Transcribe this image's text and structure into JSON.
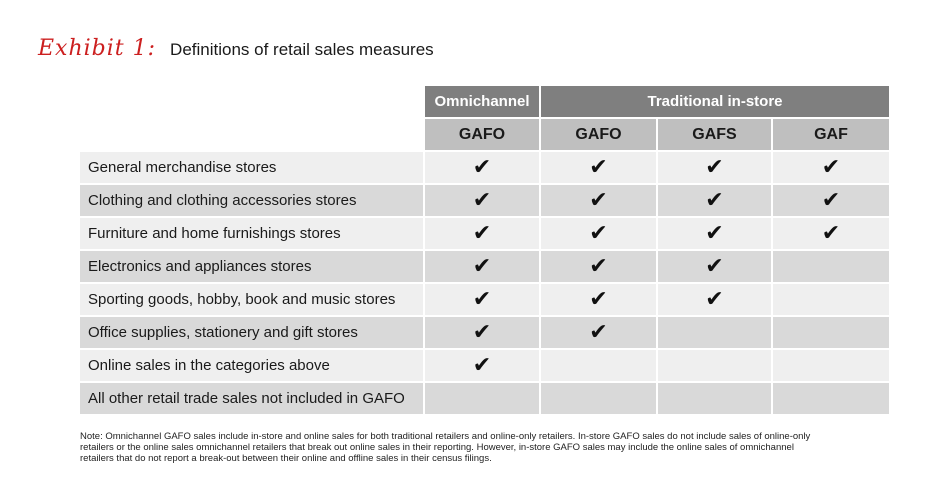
{
  "exhibit_label": "Exhibit 1:",
  "title": "Definitions of retail sales measures",
  "table": {
    "group_headers": {
      "omnichannel": "Omnichannel",
      "traditional": "Traditional in-store"
    },
    "columns": [
      "GAFO",
      "GAFO",
      "GAFS",
      "GAF"
    ],
    "check_glyph": "✔",
    "rows": [
      {
        "label": "General merchandise stores",
        "checks": [
          true,
          true,
          true,
          true
        ]
      },
      {
        "label": "Clothing and clothing accessories stores",
        "checks": [
          true,
          true,
          true,
          true
        ]
      },
      {
        "label": "Furniture and home furnishings stores",
        "checks": [
          true,
          true,
          true,
          true
        ]
      },
      {
        "label": "Electronics and appliances stores",
        "checks": [
          true,
          true,
          true,
          false
        ]
      },
      {
        "label": "Sporting goods, hobby, book and music stores",
        "checks": [
          true,
          true,
          true,
          false
        ]
      },
      {
        "label": "Office supplies, stationery and gift stores",
        "checks": [
          true,
          true,
          false,
          false
        ]
      },
      {
        "label": "Online sales in the categories above",
        "checks": [
          true,
          false,
          false,
          false
        ]
      },
      {
        "label": "All other retail trade sales not included in GAFO",
        "checks": [
          false,
          false,
          false,
          false
        ]
      }
    ]
  },
  "note": "Note: Omnichannel GAFO sales include in-store and online sales for both traditional retailers and online-only retailers. In-store GAFO sales do not include sales of online-only retailers or the online sales omnichannel retailers that break out online sales in their reporting. However, in-store GAFO sales may include the online sales of omnichannel retailers that do not report a break-out between their online and offline sales in their census filings.",
  "colors": {
    "exhibit_red": "#cc1f1f",
    "group_header": "#7f7f7f",
    "sub_header": "#bfbfbf",
    "row_light": "#efefef",
    "row_dark": "#d9d9d9"
  }
}
